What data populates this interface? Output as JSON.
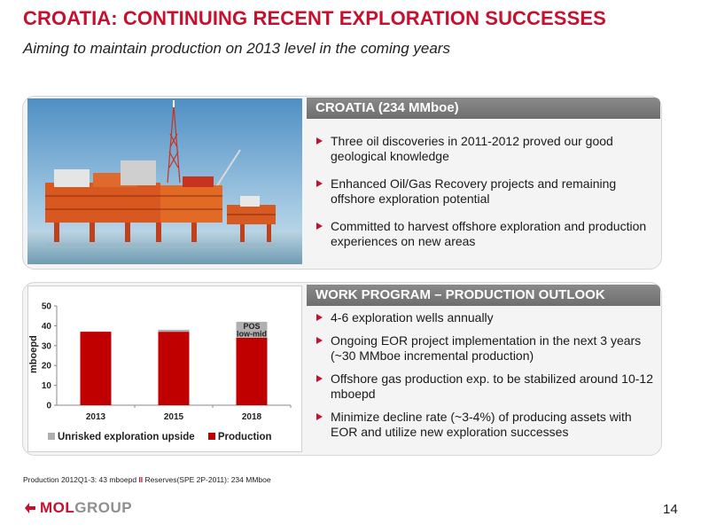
{
  "slide": {
    "title": "CROATIA: CONTINUING RECENT EXPLORATION SUCCESSES",
    "subtitle": "Aiming to maintain production on 2013 level in the coming years",
    "page_number": "14"
  },
  "top_panel": {
    "header": "CROATIA (234 MMboe)",
    "bullets": [
      "Three oil discoveries in 2011-2012 proved our good geological knowledge",
      "Enhanced Oil/Gas Recovery projects and remaining offshore exploration potential",
      "Committed to harvest offshore exploration and production experiences on new areas"
    ]
  },
  "bottom_panel": {
    "header": "WORK PROGRAM – PRODUCTION OUTLOOK",
    "bullets": [
      "4-6 exploration wells annually",
      "Ongoing EOR project implementation in the next 3 years (~30 MMboe incremental production)",
      "Offshore gas production exp. to be stabilized around 10-12 mboepd",
      "Minimize decline rate (~3-4%) of producing assets with EOR and utilize new exploration successes"
    ]
  },
  "footnote": {
    "part1": "Production 2012Q1-3: 43 mboepd",
    "separator": "II",
    "part2": "Reserves(SPE 2P-2011): 234 MMboe"
  },
  "logo": {
    "brand": "MOL",
    "suffix": "GROUP"
  },
  "colors": {
    "accent": "#c8102e",
    "header_gray": "#7a7a7a",
    "upside_gray": "#b0b0b0"
  },
  "chart_data": {
    "type": "bar",
    "stacked": true,
    "ylabel": "mboepd",
    "xlabel": "",
    "ylim": [
      0,
      50
    ],
    "yticks": [
      0,
      10,
      20,
      30,
      40,
      50
    ],
    "categories": [
      "2013",
      "2015",
      "2018"
    ],
    "series": [
      {
        "name": "Production",
        "color": "#c00000",
        "values": [
          37,
          37,
          34
        ]
      },
      {
        "name": "Unrisked exploration upside",
        "color": "#b0b0b0",
        "values": [
          0,
          1,
          8
        ]
      }
    ],
    "annotation": {
      "category": "2018",
      "lines": [
        "POS",
        "low-mid"
      ]
    },
    "legend": "bottom"
  }
}
